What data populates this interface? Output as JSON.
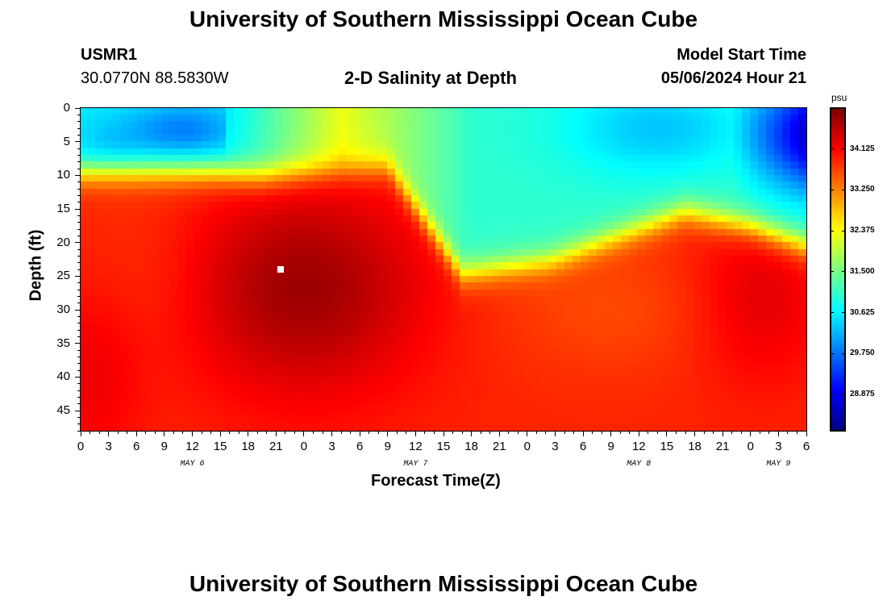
{
  "page": {
    "title_top": "University of Southern Mississippi Ocean Cube",
    "title_bottom": "University of Southern Mississippi Ocean Cube",
    "station_id": "USMR1",
    "station_coords": "30.0770N  88.5830W",
    "plot_subtitle": "2-D Salinity at Depth",
    "model_start_label": "Model Start Time",
    "model_start_value": "05/06/2024 Hour 21"
  },
  "chart_data": {
    "type": "heatmap",
    "title": "2-D Salinity at Depth",
    "xlabel": "Forecast Time(Z)",
    "ylabel": "Depth (ft)",
    "x_ticks": [
      "0",
      "3",
      "6",
      "9",
      "12",
      "15",
      "18",
      "21",
      "0",
      "3",
      "6",
      "9",
      "12",
      "15",
      "18",
      "21",
      "0",
      "3",
      "6",
      "9",
      "12",
      "15",
      "18",
      "21",
      "0",
      "3",
      "6"
    ],
    "x_range_hours": [
      0,
      78
    ],
    "day_labels": [
      {
        "label": "MAY 6",
        "at_hour": 12
      },
      {
        "label": "MAY 7",
        "at_hour": 36
      },
      {
        "label": "MAY 8",
        "at_hour": 60
      },
      {
        "label": "MAY 9",
        "at_hour": 75
      }
    ],
    "y_ticks": [
      "0",
      "5",
      "10",
      "15",
      "20",
      "25",
      "30",
      "35",
      "40",
      "45"
    ],
    "ylim": [
      0,
      48
    ],
    "y_inverted": true,
    "colorbar": {
      "unit": "psu",
      "range": [
        28.1,
        35.0
      ],
      "ticks": [
        "34.125",
        "33.250",
        "32.375",
        "31.500",
        "30.625",
        "29.750",
        "28.875"
      ],
      "colormap": "jet"
    },
    "marker": {
      "hour": 21.5,
      "depth": 24
    },
    "approx_regions": [
      {
        "desc": "fresher surface layer",
        "hours": [
          0,
          16
        ],
        "depth": [
          0,
          8
        ],
        "salinity": 30.2
      },
      {
        "desc": "low-salinity core",
        "hours": [
          5,
          20
        ],
        "depth": [
          1,
          7
        ],
        "salinity": 29.8
      },
      {
        "desc": "high-salinity core",
        "hours": [
          20,
          32
        ],
        "depth": [
          18,
          35
        ],
        "salinity": 34.9
      },
      {
        "desc": "mixed upper layer",
        "hours": [
          48,
          70
        ],
        "depth": [
          0,
          20
        ],
        "salinity": 31.0
      },
      {
        "desc": "freshest corner",
        "hours": [
          76,
          78
        ],
        "depth": [
          0,
          8
        ],
        "salinity": 28.3
      }
    ]
  }
}
